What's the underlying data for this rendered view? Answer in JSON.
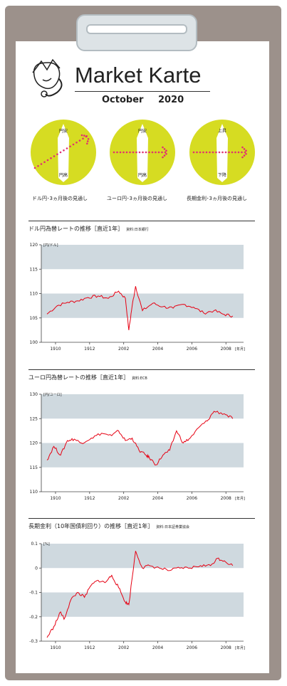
{
  "title": "Market Karte",
  "subtitle": "October 2020",
  "colors": {
    "accent": "#d6dc22",
    "arrow": "#e03070",
    "band": "#cfd9df",
    "line": "#e60012"
  },
  "dials": [
    {
      "label": "ドル円･3ヵ月後の見通し",
      "top": "円安",
      "bottom": "円高",
      "direction": "up"
    },
    {
      "label": "ユーロ円･3ヵ月後の見通し",
      "top": "円安",
      "bottom": "円高",
      "direction": "flat"
    },
    {
      "label": "長期金利･3ヵ月後の見通し",
      "top": "上昇",
      "bottom": "下降",
      "direction": "flat"
    }
  ],
  "charts": [
    {
      "title": "ドル円為替レートの推移［直近1年］",
      "source": "資料:日本銀行"
    },
    {
      "title": "ユーロ円為替レートの推移［直近1年］",
      "source": "資料:ECB"
    },
    {
      "title": "長期金利（10年国債利回り）の推移［直近1年］",
      "source": "資料:日本証券業協会"
    }
  ],
  "chart_data": [
    {
      "type": "line",
      "unit_label": "[円/ドル]",
      "x_unit": "[年月]",
      "yticks": [
        "120",
        "115",
        "110",
        "105",
        "100"
      ],
      "xticks": [
        "1910",
        "1912",
        "2002",
        "2004",
        "2006",
        "2008"
      ],
      "ylim": [
        100,
        120
      ],
      "x": [
        0,
        0.6,
        1.2,
        1.8,
        2.4,
        3.0,
        3.6,
        4.2,
        4.6,
        4.8,
        5.0,
        5.2,
        5.6,
        6.2,
        6.8,
        7.4,
        8.0,
        8.6,
        9.2,
        9.8,
        10.4,
        10.9
      ],
      "values": [
        105.8,
        107.5,
        108.2,
        108.5,
        109.2,
        109.5,
        109.0,
        110.5,
        109.0,
        102.5,
        107.5,
        111.5,
        106.5,
        108.0,
        107.3,
        107.0,
        107.8,
        107.2,
        106.0,
        106.5,
        105.7,
        105.4
      ]
    },
    {
      "type": "line",
      "unit_label": "[円/ユーロ]",
      "x_unit": "[年月]",
      "yticks": [
        "130",
        "125",
        "120",
        "115",
        "110"
      ],
      "xticks": [
        "1910",
        "1912",
        "2002",
        "2004",
        "2006",
        "2008"
      ],
      "ylim": [
        110,
        130
      ],
      "x": [
        0,
        0.4,
        0.8,
        1.2,
        1.6,
        2.0,
        2.6,
        3.2,
        3.8,
        4.2,
        4.6,
        5.0,
        5.4,
        5.8,
        6.0,
        6.4,
        6.8,
        7.2,
        7.6,
        8.0,
        8.4,
        9.0,
        9.4,
        9.8,
        10.4,
        10.9
      ],
      "values": [
        116.5,
        119.3,
        117.5,
        120.5,
        120.8,
        120.0,
        121.0,
        122.0,
        121.5,
        122.5,
        120.5,
        121.0,
        118.5,
        117.5,
        117.0,
        115.5,
        117.5,
        118.5,
        122.5,
        120.0,
        121.0,
        123.5,
        124.5,
        126.5,
        126.0,
        125.0
      ]
    },
    {
      "type": "line",
      "unit_label": "[%]",
      "x_unit": "[年月]",
      "yticks": [
        "0.1",
        "0",
        "-0.1",
        "-0.2",
        "-0.3"
      ],
      "xticks": [
        "1910",
        "1912",
        "2002",
        "2004",
        "2006",
        "2008"
      ],
      "ylim": [
        -0.3,
        0.1
      ],
      "x": [
        0,
        0.4,
        0.8,
        1.0,
        1.4,
        1.8,
        2.2,
        2.6,
        3.0,
        3.4,
        3.8,
        4.2,
        4.6,
        4.8,
        5.2,
        5.6,
        6.0,
        6.6,
        7.2,
        7.8,
        8.4,
        9.0,
        9.6,
        10.0,
        10.4,
        10.9
      ],
      "values": [
        -0.285,
        -0.24,
        -0.18,
        -0.21,
        -0.13,
        -0.1,
        -0.12,
        -0.07,
        -0.05,
        -0.06,
        -0.03,
        -0.08,
        -0.14,
        -0.15,
        0.07,
        0.0,
        0.01,
        0.0,
        -0.01,
        0.0,
        0.0,
        0.01,
        0.01,
        0.04,
        0.03,
        0.01
      ]
    }
  ]
}
